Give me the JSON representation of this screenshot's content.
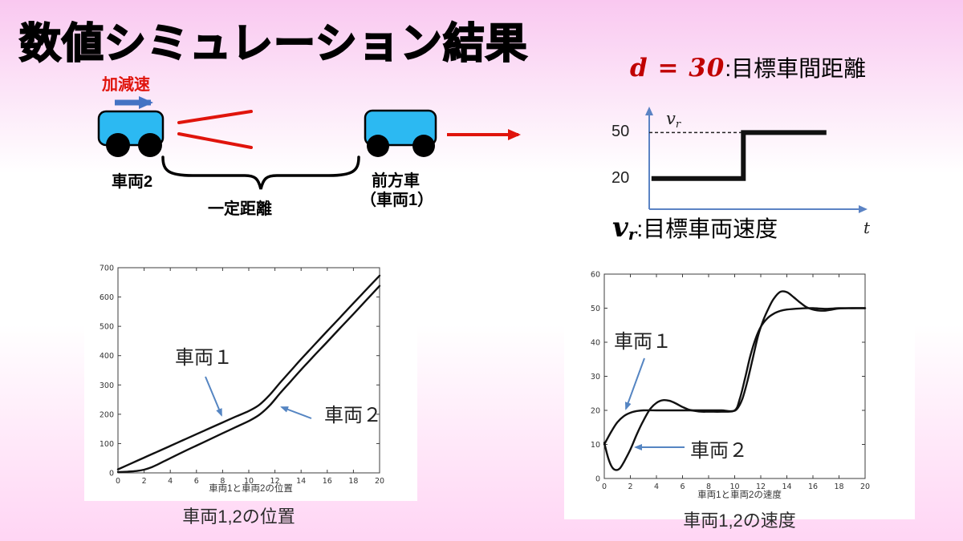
{
  "slide": {
    "title": "数値シミュレーション結果"
  },
  "diagram": {
    "accel_label": "加減速",
    "rear_car_label": "車両2",
    "front_car_label_line1": "前方車",
    "front_car_label_line2": "（車両1）",
    "distance_label": "一定距離"
  },
  "reference": {
    "d_equation": "d = 30",
    "d_description": ":目標車間距離",
    "vr_v": "v",
    "vr_sub": "r",
    "vr_description": ":目標車両速度",
    "ytick_50": "50",
    "ytick_20": "20",
    "t_axis_label": "t"
  },
  "charts": {
    "positions": {
      "caption": "車両1,2の位置",
      "anno1": "車両１",
      "anno2": "車両２"
    },
    "velocities": {
      "caption": "車両1,2の速度",
      "anno1": "車両１",
      "anno2": "車両２"
    }
  },
  "colors": {
    "background_top": "#f9c8f0",
    "background_bottom": "#ffd5f4",
    "accent_red": "#e0140c",
    "dark_red": "#c00000",
    "car_blue": "#2cb9f2",
    "diagram_arrow_blue": "#4472c4",
    "annotation_arrow_blue": "#5585c2",
    "ref_axis_blue": "#5b83c4",
    "curve_black": "#111111"
  },
  "chart_data": [
    {
      "type": "line",
      "title": "目標車両速度（参照ステップ）",
      "xlabel": "t",
      "xlim": [
        0,
        20
      ],
      "ylim": [
        0,
        68
      ],
      "yticks": [
        20,
        50
      ],
      "legend_position": "none",
      "series": [
        {
          "name": "v_r",
          "step": true,
          "points": [
            [
              0.2,
              20
            ],
            [
              8.5,
              20
            ],
            [
              8.5,
              50
            ],
            [
              16,
              50
            ]
          ]
        }
      ],
      "guides": [
        {
          "style": "dashed",
          "points": [
            [
              0,
              50
            ],
            [
              8.5,
              50
            ]
          ]
        }
      ]
    },
    {
      "type": "line",
      "title": "車両1と車両2の位置",
      "xlabel": "車両1と車両2の位置",
      "xlim": [
        0,
        20
      ],
      "ylim": [
        0,
        700
      ],
      "xticks": [
        0,
        2,
        4,
        6,
        8,
        10,
        12,
        14,
        16,
        18,
        20
      ],
      "yticks": [
        0,
        100,
        200,
        300,
        400,
        500,
        600,
        700
      ],
      "grid": false,
      "legend_position": "none",
      "series": [
        {
          "name": "車両1",
          "smooth": true,
          "points": [
            [
              0,
              12
            ],
            [
              1,
              32
            ],
            [
              2,
              52
            ],
            [
              3,
              72
            ],
            [
              4,
              92
            ],
            [
              5,
              112
            ],
            [
              6,
              132
            ],
            [
              7,
              152
            ],
            [
              8,
              172
            ],
            [
              9,
              192
            ],
            [
              10,
              211
            ],
            [
              10.8,
              232
            ],
            [
              11.6,
              266
            ],
            [
              12.4,
              308
            ],
            [
              13.2,
              348
            ],
            [
              14,
              388
            ],
            [
              15,
              436
            ],
            [
              16,
              484
            ],
            [
              17,
              531
            ],
            [
              18,
              579
            ],
            [
              19,
              626
            ],
            [
              20,
              673
            ]
          ]
        },
        {
          "name": "車両2",
          "smooth": true,
          "points": [
            [
              0,
              3
            ],
            [
              0.5,
              3.5
            ],
            [
              1,
              5
            ],
            [
              1.5,
              7
            ],
            [
              2,
              11
            ],
            [
              2.5,
              18
            ],
            [
              3,
              28
            ],
            [
              3.5,
              39
            ],
            [
              4,
              50
            ],
            [
              5,
              72
            ],
            [
              6,
              93
            ],
            [
              7,
              114
            ],
            [
              8,
              135
            ],
            [
              9,
              156
            ],
            [
              10,
              177
            ],
            [
              10.8,
              198
            ],
            [
              11.6,
              230
            ],
            [
              12.4,
              272
            ],
            [
              13.2,
              312
            ],
            [
              14,
              352
            ],
            [
              15,
              400
            ],
            [
              16,
              447
            ],
            [
              17,
              495
            ],
            [
              18,
              542
            ],
            [
              19,
              590
            ],
            [
              20,
              638
            ]
          ]
        }
      ]
    },
    {
      "type": "line",
      "title": "車両1と車両2の速度",
      "xlabel": "車両1と車両2の速度",
      "xlim": [
        0,
        20
      ],
      "ylim": [
        0,
        60
      ],
      "xticks": [
        0,
        2,
        4,
        6,
        8,
        10,
        12,
        14,
        16,
        18,
        20
      ],
      "yticks": [
        0,
        10,
        20,
        30,
        40,
        50,
        60
      ],
      "grid": false,
      "legend_position": "none",
      "series": [
        {
          "name": "車両1",
          "smooth": true,
          "points": [
            [
              0,
              10
            ],
            [
              0.5,
              13.5
            ],
            [
              1,
              16.5
            ],
            [
              1.5,
              18.3
            ],
            [
              2,
              19.3
            ],
            [
              2.5,
              19.8
            ],
            [
              3,
              20
            ],
            [
              4,
              20
            ],
            [
              5,
              20
            ],
            [
              6,
              20
            ],
            [
              7,
              20
            ],
            [
              8,
              20
            ],
            [
              9,
              20
            ],
            [
              10,
              20
            ],
            [
              10.4,
              23.5
            ],
            [
              10.8,
              29.5
            ],
            [
              11.2,
              36
            ],
            [
              11.6,
              41
            ],
            [
              12,
              44.5
            ],
            [
              12.5,
              47
            ],
            [
              13,
              48.4
            ],
            [
              13.5,
              49.2
            ],
            [
              14,
              49.6
            ],
            [
              15,
              49.9
            ],
            [
              16,
              50
            ],
            [
              17,
              49.8
            ],
            [
              18,
              50
            ],
            [
              19,
              50
            ],
            [
              20,
              50
            ]
          ]
        },
        {
          "name": "車両2",
          "smooth": true,
          "points": [
            [
              0,
              10.5
            ],
            [
              0.3,
              6
            ],
            [
              0.6,
              3.3
            ],
            [
              0.9,
              2.5
            ],
            [
              1.2,
              3
            ],
            [
              1.5,
              4.8
            ],
            [
              2,
              8.5
            ],
            [
              2.5,
              13
            ],
            [
              3,
              17
            ],
            [
              3.5,
              20.3
            ],
            [
              4,
              22.2
            ],
            [
              4.5,
              23
            ],
            [
              5,
              22.8
            ],
            [
              5.5,
              22
            ],
            [
              6,
              21
            ],
            [
              6.5,
              20.2
            ],
            [
              7,
              19.8
            ],
            [
              7.5,
              19.6
            ],
            [
              8,
              19.6
            ],
            [
              9,
              19.6
            ],
            [
              9.8,
              19.7
            ],
            [
              10.2,
              20.5
            ],
            [
              10.6,
              23.5
            ],
            [
              11,
              29
            ],
            [
              11.4,
              35.5
            ],
            [
              11.8,
              42
            ],
            [
              12.2,
              46.5
            ],
            [
              12.6,
              50
            ],
            [
              13,
              52.8
            ],
            [
              13.5,
              54.8
            ],
            [
              14,
              54.7
            ],
            [
              14.5,
              53.3
            ],
            [
              15,
              51.7
            ],
            [
              15.5,
              50.3
            ],
            [
              16,
              49.6
            ],
            [
              16.5,
              49.3
            ],
            [
              17,
              49.3
            ],
            [
              17.5,
              49.6
            ],
            [
              18,
              49.9
            ],
            [
              19,
              50
            ],
            [
              20,
              50
            ]
          ]
        }
      ]
    }
  ]
}
